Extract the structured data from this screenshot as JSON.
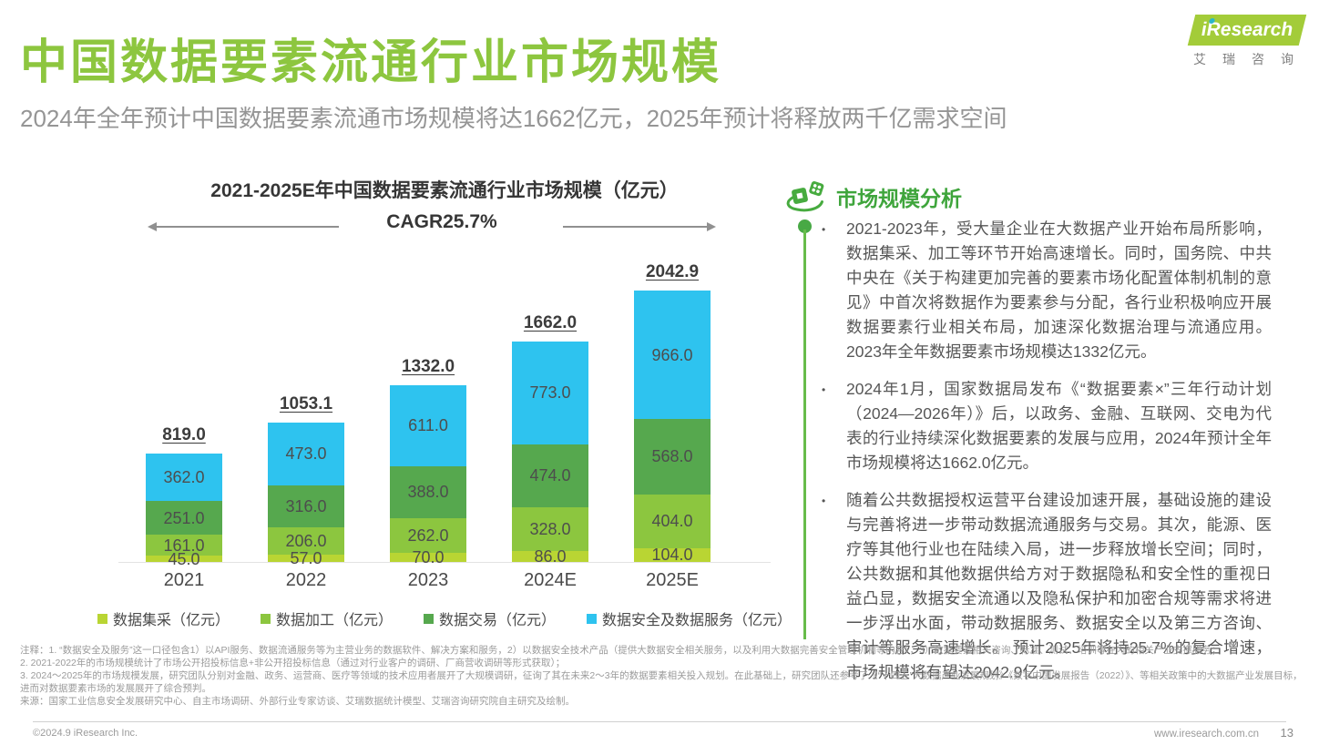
{
  "page": {
    "title": "中国数据要素流通行业市场规模",
    "subtitle": "2024年全年预计中国数据要素流通市场规模将达1662亿元，2025年预计将释放两千亿需求空间",
    "page_number": "13"
  },
  "logo": {
    "brand": "iResearch",
    "brand_cn": "艾瑞咨询"
  },
  "chart_data": {
    "type": "bar",
    "stacked": true,
    "title": "2021-2025E年中国数据要素流通行业市场规模（亿元）",
    "cagr_label": "CAGR25.7%",
    "categories": [
      "2021",
      "2022",
      "2023",
      "2024E",
      "2025E"
    ],
    "totals": [
      819.0,
      1053.1,
      1332.0,
      1662.0,
      2042.9
    ],
    "series": [
      {
        "name": "数据集采（亿元）",
        "color": "#b9d533",
        "values": [
          45.0,
          57.0,
          70.0,
          86.0,
          104.0
        ]
      },
      {
        "name": "数据加工（亿元）",
        "color": "#8cc63f",
        "values": [
          161.0,
          206.0,
          262.0,
          328.0,
          404.0
        ]
      },
      {
        "name": "数据交易（亿元）",
        "color": "#56a84e",
        "values": [
          251.0,
          316.0,
          388.0,
          474.0,
          568.0
        ]
      },
      {
        "name": "数据安全及数据服务（亿元）",
        "color": "#2ec3ef",
        "values": [
          362.0,
          473.0,
          611.0,
          773.0,
          966.0
        ]
      }
    ],
    "xlabel": "",
    "ylabel": "",
    "ylim": [
      0,
      2042.9
    ],
    "grid": false,
    "legend_position": "bottom"
  },
  "analysis": {
    "heading": "市场规模分析",
    "bullets": [
      "2021-2023年，受大量企业在大数据产业开始布局所影响，数据集采、加工等环节开始高速增长。同时，国务院、中共中央在《关于构建更加完善的要素市场化配置体制机制的意见》中首次将数据作为要素参与分配，各行业积极响应开展数据要素行业相关布局，加速深化数据治理与流通应用。2023年全年数据要素市场规模达1332亿元。",
      "2024年1月，国家数据局发布《“数据要素×”三年行动计划（2024—2026年）》后，以政务、金融、互联网、交电为代表的行业持续深化数据要素的发展与应用，2024年预计全年市场规模将达1662.0亿元。",
      "随着公共数据授权运营平台建设加速开展，基础设施的建设与完善将进一步带动数据流通服务与交易。其次，能源、医疗等其他行业也在陆续入局，进一步释放增长空间；同时，公共数据和其他数据供给方对于数据隐私和安全性的重视日益凸显，数据安全流通以及隐私保护和加密合规等需求将进一步浮出水面，带动数据服务、数据安全以及第三方咨询、审计等服务高速增长。 预计2025年将持25.7%的复合增速，市场规模将有望达2042.9亿元。"
    ]
  },
  "footnotes": {
    "lines": [
      "注释：1. “数据安全及服务”这一口径包含1）以API服务、数据流通服务等为主营业务的数据软件、解决方案和服务，2）以数据安全技术产品（提供大数据安全相关服务，以及利用大数据完善安全管理机制等内容），3）数据要素相关咨询、标准、测试、培训等在内的相关产业支撑服务；",
      "2. 2021-2022年的市场规模统计了市场公开招投标信息+非公开招投标信息（通过对行业客户的调研、厂商营收调研等形式获取）；",
      "3. 2024～2025年的市场规模发展，研究团队分别对金融、政务、运营商、医疗等领域的技术应用者展开了大规模调研，征询了其在未来2～3年的数据要素相关投入规划。在此基础上，研究团队还参考了《“十四五”大数据产业发展规划》《数字中国发展报告（2022）》、等相关政策中的大数据产业发展目标，进而对数据要素市场的发展展开了综合预判。",
      "来源：国家工业信息安全发展研究中心、自主市场调研、外部行业专家访谈、艾瑞数据统计模型、艾瑞咨询研究院自主研究及绘制。"
    ]
  },
  "footer": {
    "copyright": "©2024.9 iResearch Inc.",
    "website": "www.iresearch.com.cn"
  },
  "colors": {
    "title_green": "#8dc63f",
    "heading_green": "#3fa53c",
    "logo_green": "#a3cc39",
    "logo_dot_teal": "#2bb6c8",
    "timeline_green": "#67bc4a",
    "arrow_gray": "#909090"
  }
}
